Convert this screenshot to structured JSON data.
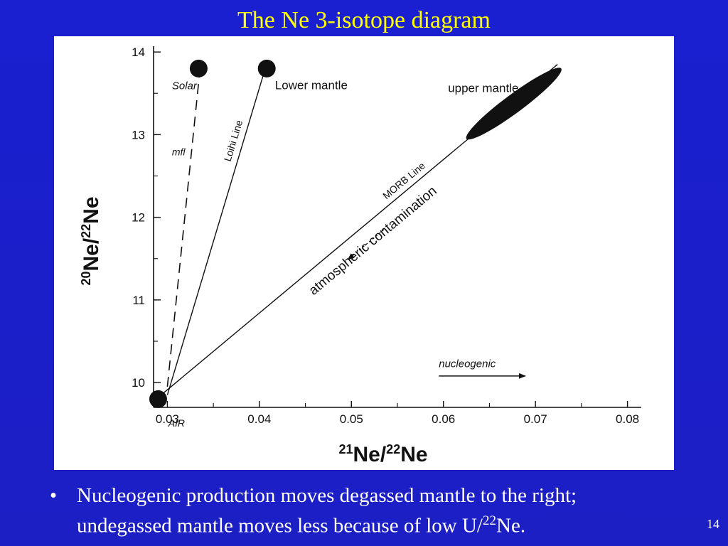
{
  "slide": {
    "title": "The Ne 3-isotope diagram",
    "bullet_marker": "•",
    "bullet_line1": "Nucleogenic production moves degassed mantle to the right;",
    "bullet_line2_pre": "undegassed mantle moves less because of low U/",
    "bullet_line2_sup": "22",
    "bullet_line2_post": "Ne.",
    "page_number": "14"
  },
  "chart_data": {
    "type": "scatter",
    "xlabel_parts": [
      "21",
      "Ne/",
      "22",
      "Ne"
    ],
    "ylabel_parts": [
      "20",
      "Ne/",
      "22",
      "Ne"
    ],
    "xlim": [
      0.0285,
      0.0815
    ],
    "ylim": [
      9.7,
      14.07
    ],
    "x_ticks": [
      0.03,
      0.04,
      0.05,
      0.06,
      0.07,
      0.08
    ],
    "x_tick_labels": [
      "0.03",
      "0.04",
      "0.05",
      "0.06",
      "0.07",
      "0.08"
    ],
    "y_ticks": [
      10,
      11,
      12,
      13,
      14
    ],
    "y_tick_labels": [
      "10",
      "11",
      "12",
      "13",
      "14"
    ],
    "grid": false,
    "points": [
      {
        "name": "Solar",
        "x": 0.0334,
        "y": 13.8
      },
      {
        "name": "Lower mantle",
        "x": 0.0408,
        "y": 13.8
      },
      {
        "name": "AIR",
        "x": 0.029,
        "y": 9.8
      }
    ],
    "lines": [
      {
        "name": "mfl",
        "style": "dashed",
        "from": [
          0.03,
          9.95
        ],
        "to": [
          0.0336,
          13.85
        ]
      },
      {
        "name": "Loihi Line",
        "style": "solid",
        "from": [
          0.03,
          9.85
        ],
        "to": [
          0.0405,
          13.75
        ]
      },
      {
        "name": "MORB Line",
        "style": "solid",
        "from": [
          0.029,
          9.82
        ],
        "to": [
          0.0724,
          13.85
        ]
      }
    ],
    "regions": [
      {
        "name": "upper mantle",
        "x_range": [
          0.0625,
          0.0728
        ],
        "y_range": [
          12.95,
          13.8
        ]
      }
    ],
    "annotations": [
      {
        "text": "atmospheric contamination",
        "direction": "toward AIR along MORB Line"
      },
      {
        "text": "nucleogenic",
        "direction": "increasing 21Ne/22Ne"
      }
    ]
  }
}
